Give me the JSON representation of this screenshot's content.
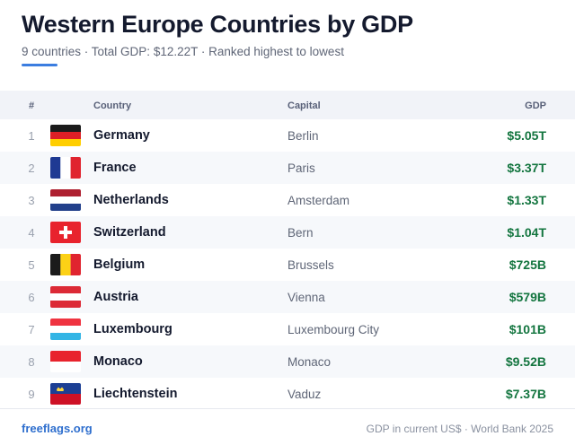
{
  "header": {
    "title": "Western Europe Countries by GDP",
    "subtitle": "9 countries · Total GDP: $12.22T · Ranked highest to lowest",
    "accent_color": "#3b7de0"
  },
  "table": {
    "columns": {
      "rank": "#",
      "country": "Country",
      "capital": "Capital",
      "gdp": "GDP"
    },
    "rows": [
      {
        "rank": "1",
        "flag": "germany-flag",
        "country": "Germany",
        "capital": "Berlin",
        "gdp": "$5.05T"
      },
      {
        "rank": "2",
        "flag": "france-flag",
        "country": "France",
        "capital": "Paris",
        "gdp": "$3.37T"
      },
      {
        "rank": "3",
        "flag": "netherlands-flag",
        "country": "Netherlands",
        "capital": "Amsterdam",
        "gdp": "$1.33T"
      },
      {
        "rank": "4",
        "flag": "switzerland-flag",
        "country": "Switzerland",
        "capital": "Bern",
        "gdp": "$1.04T"
      },
      {
        "rank": "5",
        "flag": "belgium-flag",
        "country": "Belgium",
        "capital": "Brussels",
        "gdp": "$725B"
      },
      {
        "rank": "6",
        "flag": "austria-flag",
        "country": "Austria",
        "capital": "Vienna",
        "gdp": "$579B"
      },
      {
        "rank": "7",
        "flag": "luxembourg-flag",
        "country": "Luxembourg",
        "capital": "Luxembourg City",
        "gdp": "$101B"
      },
      {
        "rank": "8",
        "flag": "monaco-flag",
        "country": "Monaco",
        "capital": "Monaco",
        "gdp": "$9.52B"
      },
      {
        "rank": "9",
        "flag": "liechtenstein-flag",
        "country": "Liechtenstein",
        "capital": "Vaduz",
        "gdp": "$7.37B"
      }
    ],
    "gdp_color": "#13753f"
  },
  "footer": {
    "link": "freeflags.org",
    "note": "GDP in current US$ · World Bank 2025"
  }
}
